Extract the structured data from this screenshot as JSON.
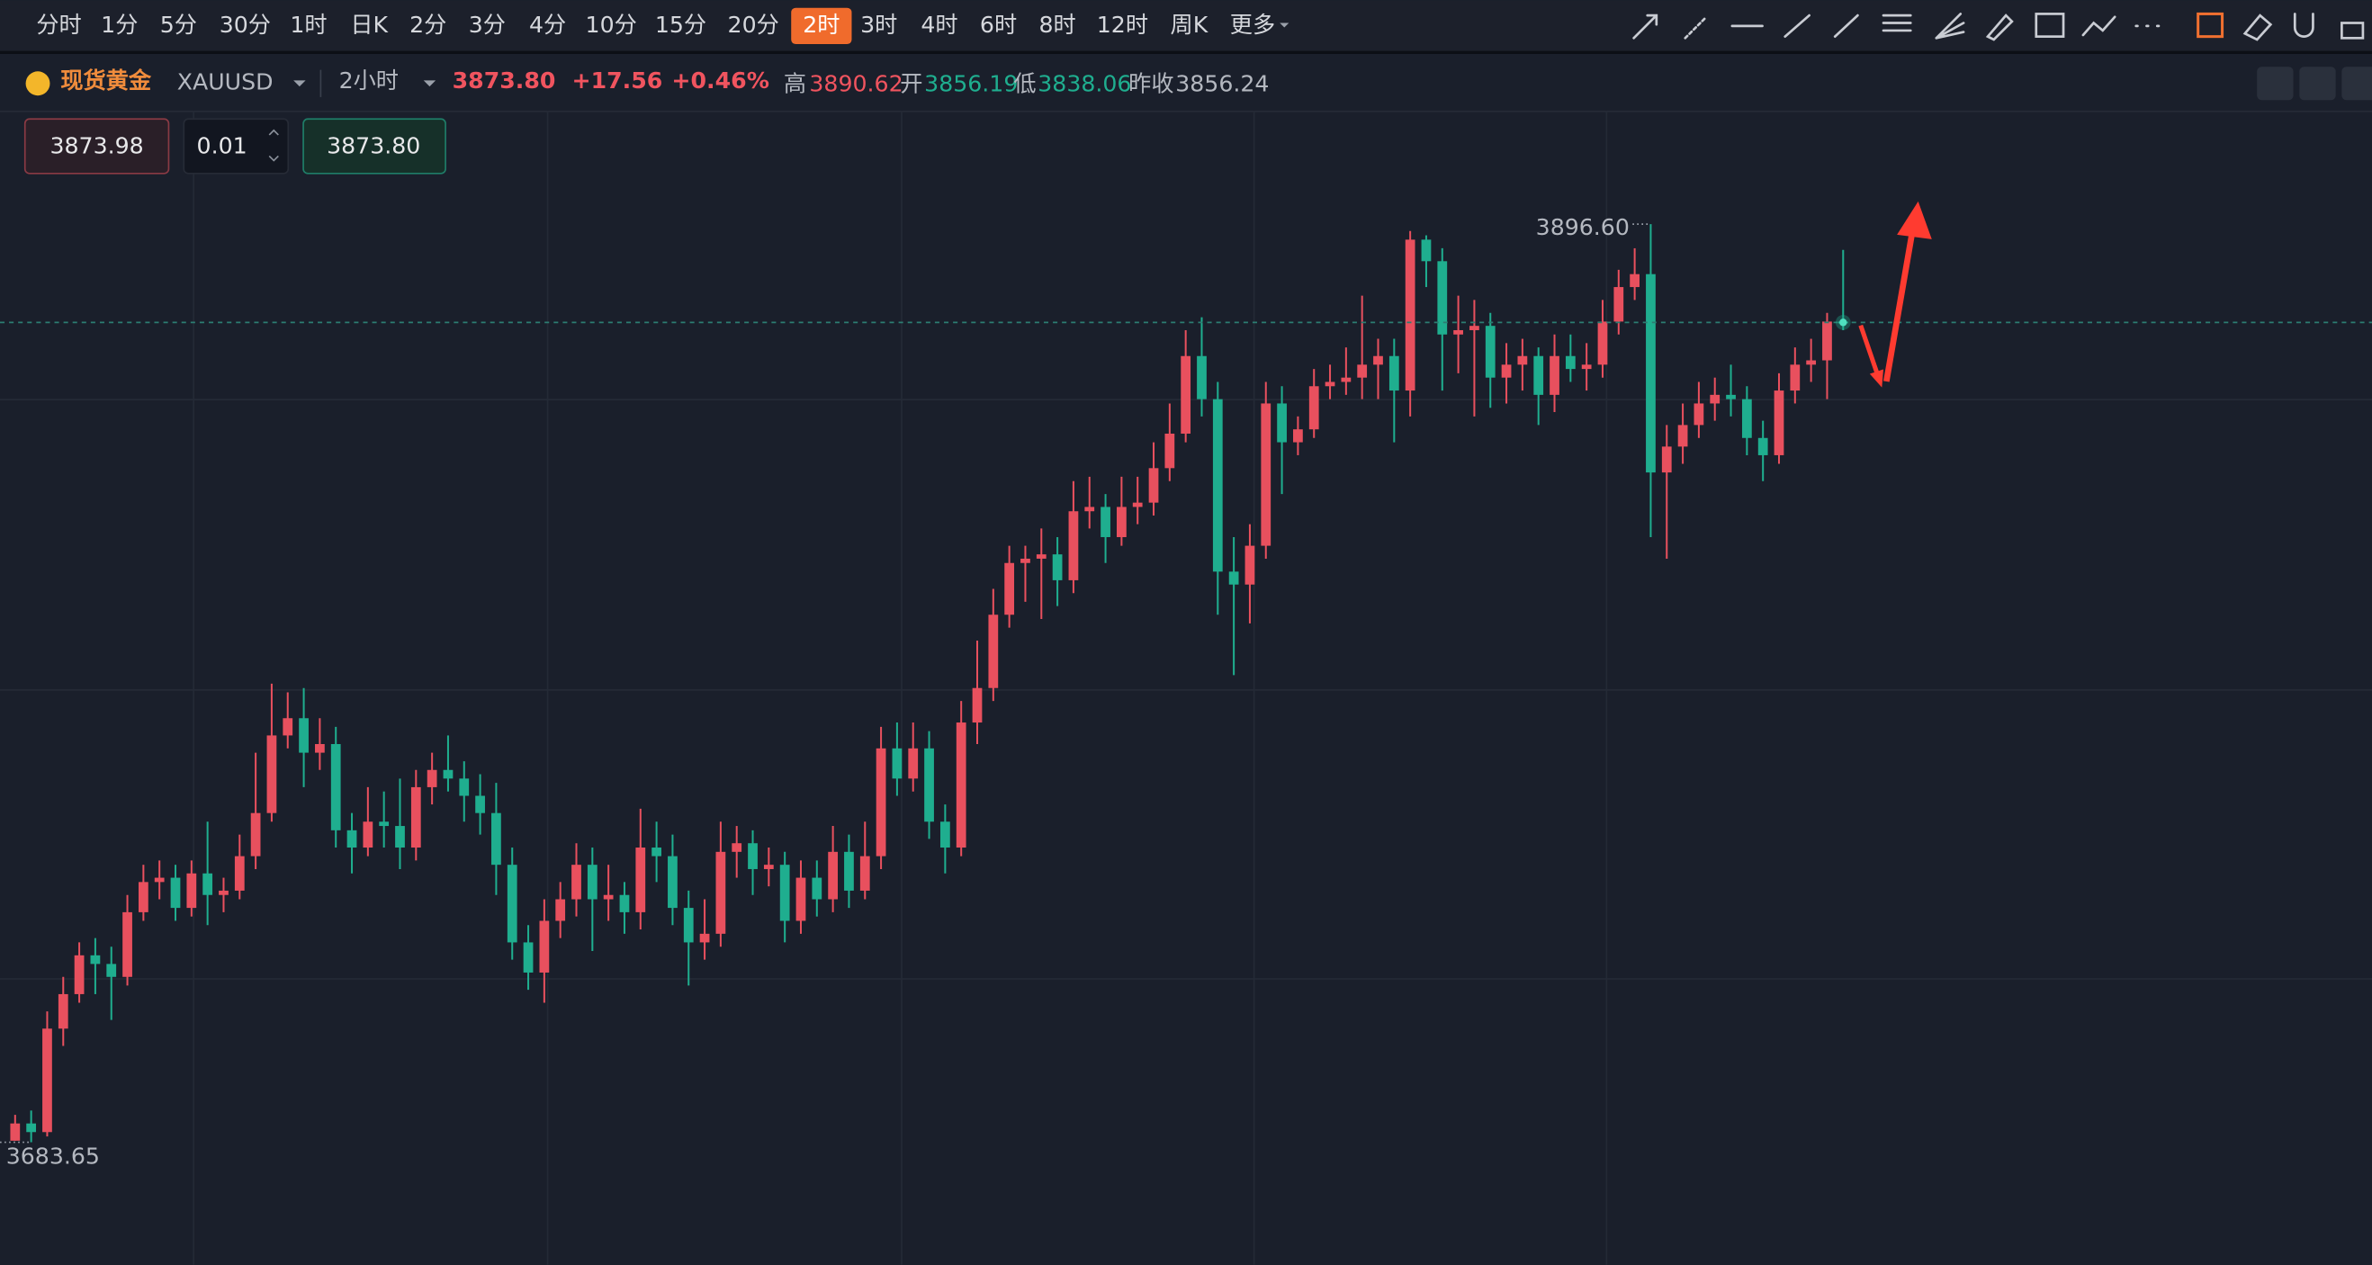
{
  "toolbar": {
    "periods": [
      "分时",
      "1分",
      "5分",
      "30分",
      "1时",
      "日K",
      "2分",
      "3分",
      "4分",
      "10分",
      "15分",
      "20分",
      "2时",
      "3时",
      "4时",
      "6时",
      "8时",
      "12时",
      "周K"
    ],
    "selected_index": 12,
    "more": "更多"
  },
  "symbol": {
    "name": "现货黄金",
    "code": "XAUUSD",
    "interval": "2小时",
    "price": "3873.80",
    "change": "+17.56",
    "change_pct": "+0.46%",
    "high_label": "高",
    "high": "3890.62",
    "open_label": "开",
    "open": "3856.19",
    "low_label": "低",
    "low": "3838.06",
    "prev_label": "昨收",
    "prev": "3856.24"
  },
  "order": {
    "sell": "3873.98",
    "qty": "0.01",
    "buy": "3873.80"
  },
  "chart_data": {
    "type": "candlestick",
    "up_color": "#e8505e",
    "down_color": "#1fae8f",
    "last_price": 3873.8,
    "annotations": {
      "high": "3896.60",
      "low": "3683.65"
    },
    "candles": [
      [
        3684,
        3690,
        3684,
        3688
      ],
      [
        3688,
        3691,
        3683.65,
        3686
      ],
      [
        3686,
        3714,
        3685,
        3710
      ],
      [
        3710,
        3722,
        3706,
        3718
      ],
      [
        3718,
        3730,
        3716,
        3727
      ],
      [
        3727,
        3731,
        3718,
        3725
      ],
      [
        3725,
        3729,
        3712,
        3722
      ],
      [
        3722,
        3741,
        3720,
        3737
      ],
      [
        3737,
        3748,
        3735,
        3744
      ],
      [
        3744,
        3749,
        3740,
        3745
      ],
      [
        3745,
        3748,
        3735,
        3738
      ],
      [
        3738,
        3749,
        3736,
        3746
      ],
      [
        3746,
        3758,
        3734,
        3741
      ],
      [
        3741,
        3745,
        3737,
        3742
      ],
      [
        3742,
        3755,
        3740,
        3750
      ],
      [
        3750,
        3774,
        3747,
        3760
      ],
      [
        3760,
        3790,
        3758,
        3778
      ],
      [
        3778,
        3788,
        3775,
        3782
      ],
      [
        3782,
        3789,
        3766,
        3774
      ],
      [
        3774,
        3782,
        3770,
        3776
      ],
      [
        3776,
        3780,
        3752,
        3756
      ],
      [
        3756,
        3760,
        3746,
        3752
      ],
      [
        3752,
        3766,
        3750,
        3758
      ],
      [
        3758,
        3765,
        3752,
        3757
      ],
      [
        3757,
        3768,
        3747,
        3752
      ],
      [
        3752,
        3770,
        3749,
        3766
      ],
      [
        3766,
        3774,
        3762,
        3770
      ],
      [
        3770,
        3778,
        3765,
        3768
      ],
      [
        3768,
        3772,
        3758,
        3764
      ],
      [
        3764,
        3769,
        3755,
        3760
      ],
      [
        3760,
        3767,
        3741,
        3748
      ],
      [
        3748,
        3752,
        3726,
        3730
      ],
      [
        3730,
        3734,
        3719,
        3723
      ],
      [
        3723,
        3740,
        3716,
        3735
      ],
      [
        3735,
        3744,
        3731,
        3740
      ],
      [
        3740,
        3753,
        3736,
        3748
      ],
      [
        3748,
        3752,
        3728,
        3740
      ],
      [
        3740,
        3748,
        3735,
        3741
      ],
      [
        3741,
        3744,
        3732,
        3737
      ],
      [
        3737,
        3761,
        3733,
        3752
      ],
      [
        3752,
        3758,
        3744,
        3750
      ],
      [
        3750,
        3755,
        3734,
        3738
      ],
      [
        3738,
        3742,
        3720,
        3730
      ],
      [
        3730,
        3740,
        3726,
        3732
      ],
      [
        3732,
        3758,
        3729,
        3751
      ],
      [
        3751,
        3757,
        3745,
        3753
      ],
      [
        3753,
        3756,
        3741,
        3747
      ],
      [
        3747,
        3752,
        3743,
        3748
      ],
      [
        3748,
        3751,
        3730,
        3735
      ],
      [
        3735,
        3749,
        3732,
        3745
      ],
      [
        3745,
        3749,
        3736,
        3740
      ],
      [
        3740,
        3757,
        3737,
        3751
      ],
      [
        3751,
        3755,
        3738,
        3742
      ],
      [
        3742,
        3758,
        3740,
        3750
      ],
      [
        3750,
        3780,
        3747,
        3775
      ],
      [
        3775,
        3781,
        3764,
        3768
      ],
      [
        3768,
        3781,
        3765,
        3775
      ],
      [
        3775,
        3779,
        3754,
        3758
      ],
      [
        3758,
        3762,
        3746,
        3752
      ],
      [
        3752,
        3786,
        3750,
        3781
      ],
      [
        3781,
        3800,
        3776,
        3789
      ],
      [
        3789,
        3812,
        3786,
        3806
      ],
      [
        3806,
        3822,
        3803,
        3818
      ],
      [
        3818,
        3822,
        3809,
        3819
      ],
      [
        3819,
        3826,
        3805,
        3820
      ],
      [
        3820,
        3824,
        3808,
        3814
      ],
      [
        3814,
        3837,
        3811,
        3830
      ],
      [
        3830,
        3838,
        3826,
        3831
      ],
      [
        3831,
        3834,
        3818,
        3824
      ],
      [
        3824,
        3838,
        3822,
        3831
      ],
      [
        3831,
        3838,
        3827,
        3832
      ],
      [
        3832,
        3846,
        3829,
        3840
      ],
      [
        3840,
        3855,
        3837,
        3848
      ],
      [
        3848,
        3872,
        3846,
        3866
      ],
      [
        3866,
        3875,
        3852,
        3856
      ],
      [
        3856,
        3860,
        3806,
        3816
      ],
      [
        3816,
        3824,
        3792,
        3813
      ],
      [
        3813,
        3827,
        3804,
        3822
      ],
      [
        3822,
        3860,
        3819,
        3855
      ],
      [
        3855,
        3859,
        3834,
        3846
      ],
      [
        3846,
        3852,
        3843,
        3849
      ],
      [
        3849,
        3863,
        3847,
        3859
      ],
      [
        3859,
        3864,
        3856,
        3860
      ],
      [
        3860,
        3868,
        3857,
        3861
      ],
      [
        3861,
        3880,
        3856,
        3864
      ],
      [
        3864,
        3870,
        3856,
        3866
      ],
      [
        3866,
        3870,
        3846,
        3858
      ],
      [
        3858,
        3895,
        3852,
        3893
      ],
      [
        3893,
        3894,
        3882,
        3888
      ],
      [
        3888,
        3891,
        3858,
        3871
      ],
      [
        3871,
        3880,
        3862,
        3872
      ],
      [
        3872,
        3879,
        3852,
        3873
      ],
      [
        3873,
        3876,
        3854,
        3861
      ],
      [
        3861,
        3869,
        3855,
        3864
      ],
      [
        3864,
        3870,
        3858,
        3866
      ],
      [
        3866,
        3868,
        3850,
        3857
      ],
      [
        3857,
        3871,
        3853,
        3866
      ],
      [
        3866,
        3871,
        3860,
        3863
      ],
      [
        3863,
        3869,
        3858,
        3864
      ],
      [
        3864,
        3879,
        3861,
        3874
      ],
      [
        3874,
        3886,
        3871,
        3882
      ],
      [
        3882,
        3891,
        3879,
        3885
      ],
      [
        3885,
        3896.6,
        3824,
        3839
      ],
      [
        3839,
        3850,
        3819,
        3845
      ],
      [
        3845,
        3855,
        3841,
        3850
      ],
      [
        3850,
        3860,
        3847,
        3855
      ],
      [
        3855,
        3861,
        3851,
        3857
      ],
      [
        3857,
        3864,
        3852,
        3856
      ],
      [
        3856,
        3859,
        3843,
        3847
      ],
      [
        3847,
        3851,
        3837,
        3843
      ],
      [
        3843,
        3862,
        3841,
        3858
      ],
      [
        3858,
        3868,
        3855,
        3864
      ],
      [
        3864,
        3870,
        3860,
        3865
      ],
      [
        3865,
        3876,
        3856,
        3874
      ],
      [
        3874,
        3890.62,
        3872,
        3873.8
      ]
    ]
  }
}
